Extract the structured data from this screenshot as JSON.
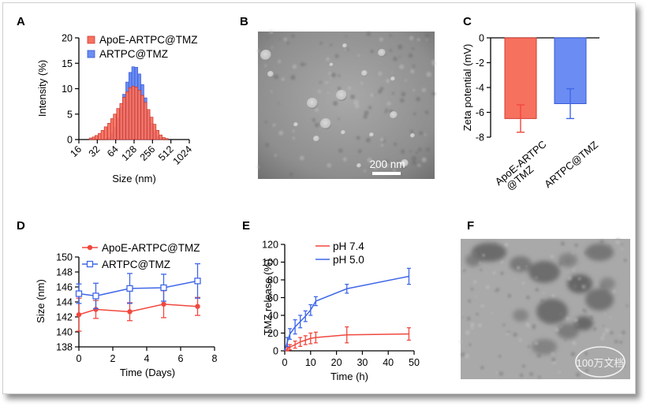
{
  "panels": {
    "a": {
      "letter": "A"
    },
    "b": {
      "letter": "B",
      "scalebar": "200 nm"
    },
    "c": {
      "letter": "C"
    },
    "d": {
      "letter": "D"
    },
    "e": {
      "letter": "E"
    },
    "f": {
      "letter": "F",
      "watermark": "100万文档"
    }
  },
  "colors": {
    "red": "#f0483e",
    "red_fill": "#f7715f",
    "blue": "#3f67e8",
    "blue_fill": "#6b8cf2"
  },
  "chart_data": [
    {
      "id": "A",
      "type": "bar",
      "xlabel": "Size (nm)",
      "ylabel": "Intensity (%)",
      "x_scale": "log2",
      "xlim": [
        16,
        1024
      ],
      "ylim": [
        0,
        20
      ],
      "x_ticks": [
        "16",
        "32",
        "64",
        "128",
        "256",
        "512",
        "1024"
      ],
      "y_ticks": [
        "0",
        "5",
        "10",
        "15",
        "20"
      ],
      "legend": [
        "ApoE-ARTPC@TMZ",
        "ARTPC@TMZ"
      ],
      "x_bin_centers": [
        25,
        28,
        31,
        35,
        39,
        44,
        50,
        56,
        62,
        70,
        79,
        88,
        99,
        111,
        124,
        139,
        156,
        175,
        196,
        220,
        247,
        277,
        310,
        348,
        390,
        437
      ],
      "series": [
        {
          "name": "ARTPC@TMZ",
          "values": [
            0,
            0,
            0,
            0,
            0,
            0,
            0.4,
            1.2,
            2.4,
            4.2,
            6.4,
            8.9,
            11.3,
            13.2,
            14.3,
            14.2,
            12.9,
            10.8,
            8.2,
            5.5,
            3.2,
            1.6,
            0.6,
            0.2,
            0,
            0
          ]
        },
        {
          "name": "ApoE-ARTPC@TMZ",
          "values": [
            0.3,
            0.5,
            0.8,
            1.2,
            1.8,
            2.5,
            3.2,
            4.1,
            5.0,
            6.1,
            7.1,
            8.3,
            9.4,
            10.2,
            10.5,
            10.3,
            9.7,
            8.7,
            7.3,
            5.9,
            4.4,
            3.0,
            1.8,
            0.9,
            0.4,
            0.2
          ]
        }
      ]
    },
    {
      "id": "C",
      "type": "bar",
      "xlabel": "",
      "ylabel": "Zeta potential (mV)",
      "ylim": [
        -8,
        0
      ],
      "y_ticks": [
        "0",
        "-2",
        "-4",
        "-6",
        "-8"
      ],
      "categories": [
        "ApoE-ARTPC @TMZ",
        "ARTPC@TMZ"
      ],
      "category_lines": [
        [
          "ApoE-ARTPC",
          "@TMZ"
        ],
        [
          "ARTPC@TMZ"
        ]
      ],
      "values": [
        -6.5,
        -5.3
      ],
      "errors": [
        1.1,
        1.2
      ]
    },
    {
      "id": "D",
      "type": "line",
      "xlabel": "Time (Days)",
      "ylabel": "Size (nm)",
      "xlim": [
        0,
        8
      ],
      "ylim": [
        138,
        150
      ],
      "x_ticks": [
        "0",
        "2",
        "4",
        "6",
        "8"
      ],
      "y_ticks": [
        "138",
        "140",
        "142",
        "144",
        "146",
        "148",
        "150"
      ],
      "legend": [
        "ApoE-ARTPC@TMZ",
        "ARTPC@TMZ"
      ],
      "series": [
        {
          "name": "ApoE-ARTPC@TMZ",
          "x": [
            0,
            1,
            3,
            5,
            7
          ],
          "y": [
            142.3,
            143.0,
            142.7,
            143.7,
            143.4
          ],
          "err": [
            2.2,
            1.2,
            1.2,
            1.8,
            1.2
          ]
        },
        {
          "name": "ARTPC@TMZ",
          "x": [
            0,
            1,
            3,
            5,
            7
          ],
          "y": [
            145.1,
            144.8,
            145.8,
            145.9,
            146.8
          ],
          "err": [
            1.3,
            1.7,
            2.0,
            1.8,
            2.3
          ]
        }
      ]
    },
    {
      "id": "E",
      "type": "line",
      "xlabel": "Time (h)",
      "ylabel": "TMZ release (%)",
      "xlim": [
        0,
        50
      ],
      "ylim": [
        0,
        120
      ],
      "x_ticks": [
        "0",
        "10",
        "20",
        "30",
        "40",
        "50"
      ],
      "y_ticks": [
        "0",
        "20",
        "40",
        "60",
        "80",
        "100",
        "120"
      ],
      "legend": [
        "pH 7.4",
        "pH 5.0"
      ],
      "series": [
        {
          "name": "pH 7.4",
          "x": [
            0,
            1,
            2,
            4,
            6,
            8,
            10,
            12,
            24,
            48
          ],
          "y": [
            0,
            2,
            4,
            7,
            10,
            12,
            14,
            15,
            18,
            19
          ],
          "err": [
            0,
            2,
            3,
            4,
            5,
            5,
            6,
            6,
            9,
            7
          ]
        },
        {
          "name": "pH 5.0",
          "x": [
            0,
            1,
            2,
            4,
            6,
            8,
            10,
            12,
            24,
            48
          ],
          "y": [
            0,
            10,
            19,
            27,
            33,
            39,
            46,
            56,
            70,
            84
          ],
          "err": [
            0,
            5,
            6,
            8,
            7,
            6,
            6,
            5,
            5,
            9
          ]
        }
      ]
    }
  ]
}
